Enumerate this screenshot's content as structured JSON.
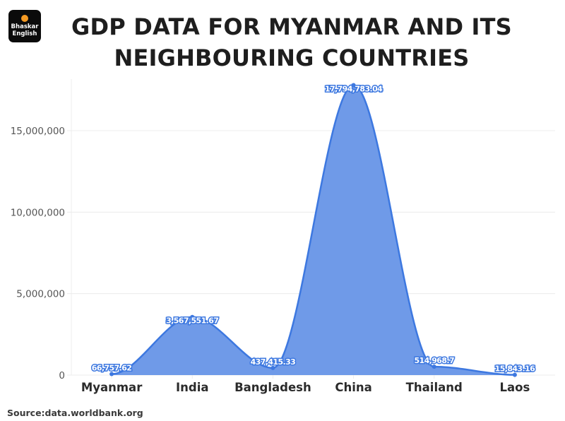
{
  "logo": {
    "line1": "Bhaskar",
    "line2": "English",
    "dot_color": "#f59a23"
  },
  "header": {
    "title_line1": "GDP DATA FOR MYANMAR AND ITS",
    "title_line2": "NEIGHBOURING COUNTRIES"
  },
  "footer": {
    "source": "Source:data.worldbank.org"
  },
  "colors": {
    "area_fill": "#6f9ae8",
    "line": "#3d78e0",
    "grid": "#ececec"
  },
  "chart_data": {
    "type": "area",
    "title": "GDP DATA FOR MYANMAR AND ITS NEIGHBOURING COUNTRIES",
    "xlabel": "",
    "ylabel": "",
    "categories": [
      "Myanmar",
      "India",
      "Bangladesh",
      "China",
      "Thailand",
      "Laos"
    ],
    "values": [
      66757.62,
      3567551.67,
      437415.33,
      17794783.04,
      514968.7,
      15843.16
    ],
    "value_labels": [
      "66,757.62",
      "3,567,551.67",
      "437,415.33",
      "17,794,783.04",
      "514,968.7",
      "15,843.16"
    ],
    "y_ticks": [
      0,
      5000000,
      10000000,
      15000000
    ],
    "y_tick_labels": [
      "0",
      "5,000,000",
      "10,000,000",
      "15,000,000"
    ],
    "ylim": [
      0,
      18000000
    ],
    "grid": true,
    "smooth": true,
    "legend": null,
    "source": "Source:data.worldbank.org"
  }
}
